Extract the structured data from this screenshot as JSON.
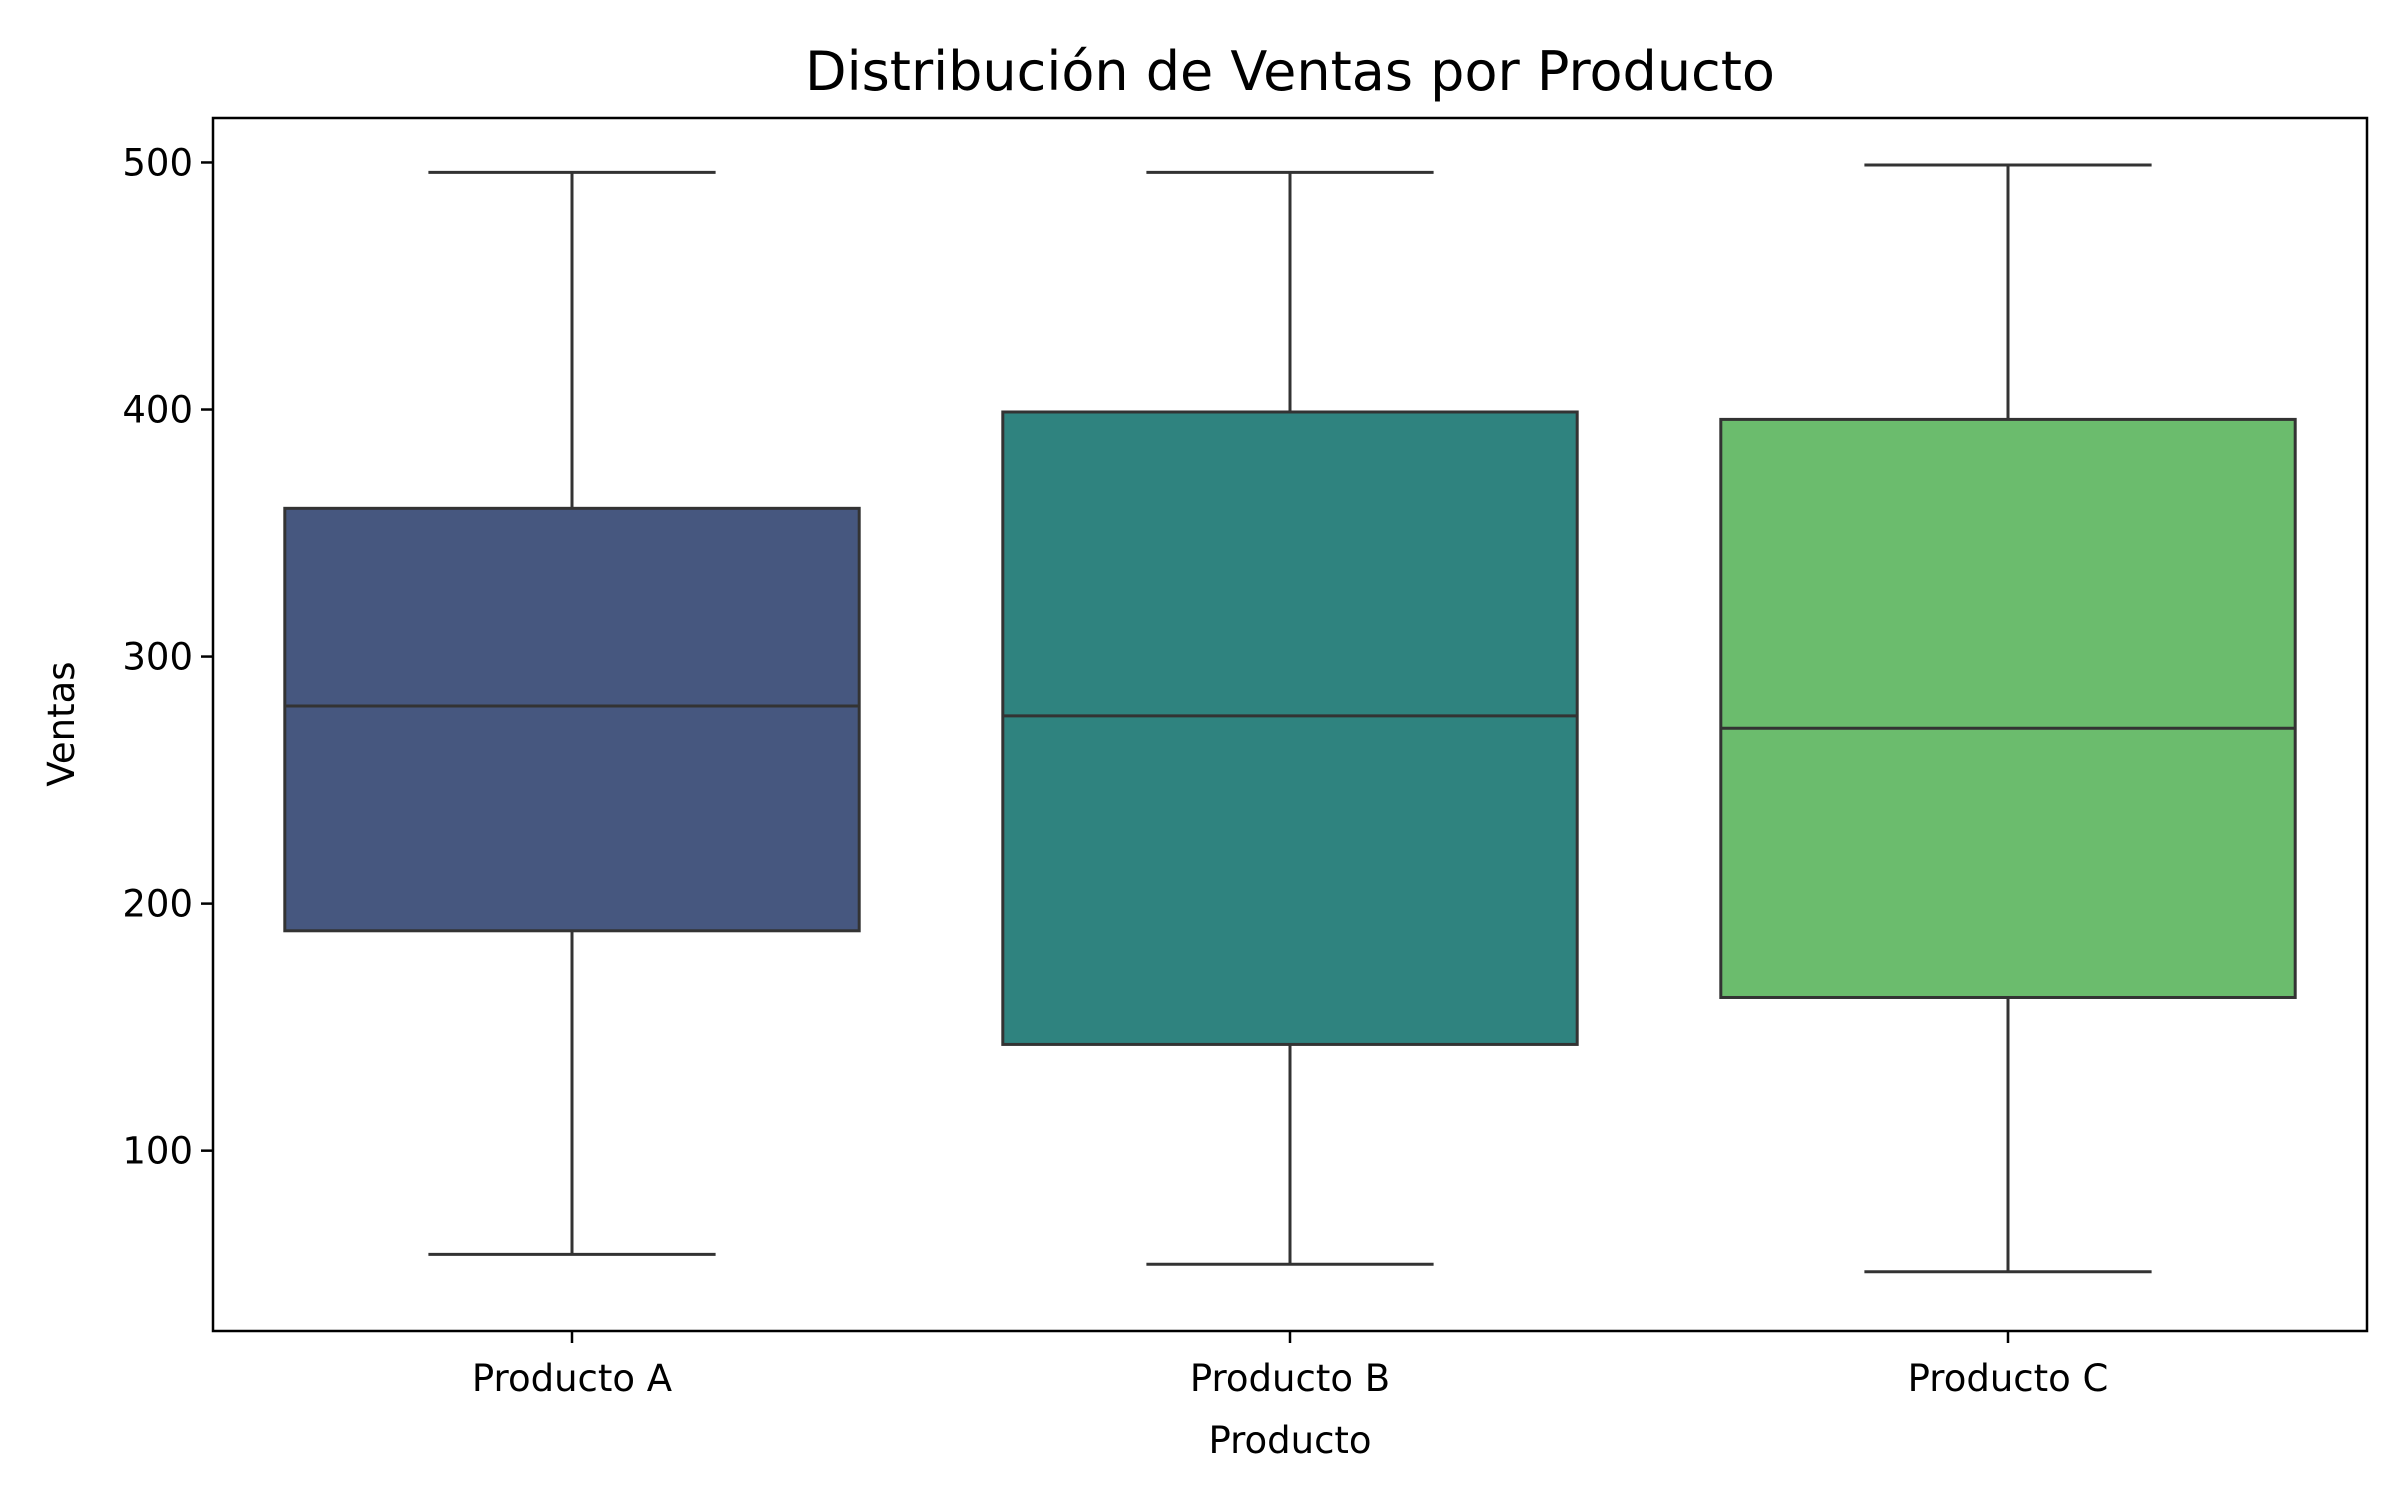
{
  "chart_data": {
    "type": "box",
    "title": "Distribución de Ventas por Producto",
    "xlabel": "Producto",
    "ylabel": "Ventas",
    "ylim": [
      27,
      518
    ],
    "yticks": [
      100,
      200,
      300,
      400,
      500
    ],
    "grid": false,
    "categories": [
      "Producto A",
      "Producto B",
      "Producto C"
    ],
    "boxes": [
      {
        "category": "Producto A",
        "whisker_low": 58,
        "q1": 189,
        "median": 280,
        "q3": 360,
        "whisker_high": 496,
        "color": "#46577f"
      },
      {
        "category": "Producto B",
        "whisker_low": 54,
        "q1": 143,
        "median": 276,
        "q3": 399,
        "whisker_high": 496,
        "color": "#2f837f"
      },
      {
        "category": "Producto C",
        "whisker_low": 51,
        "q1": 162,
        "median": 271,
        "q3": 396,
        "whisker_high": 499,
        "color": "#6bbc6d"
      }
    ]
  }
}
